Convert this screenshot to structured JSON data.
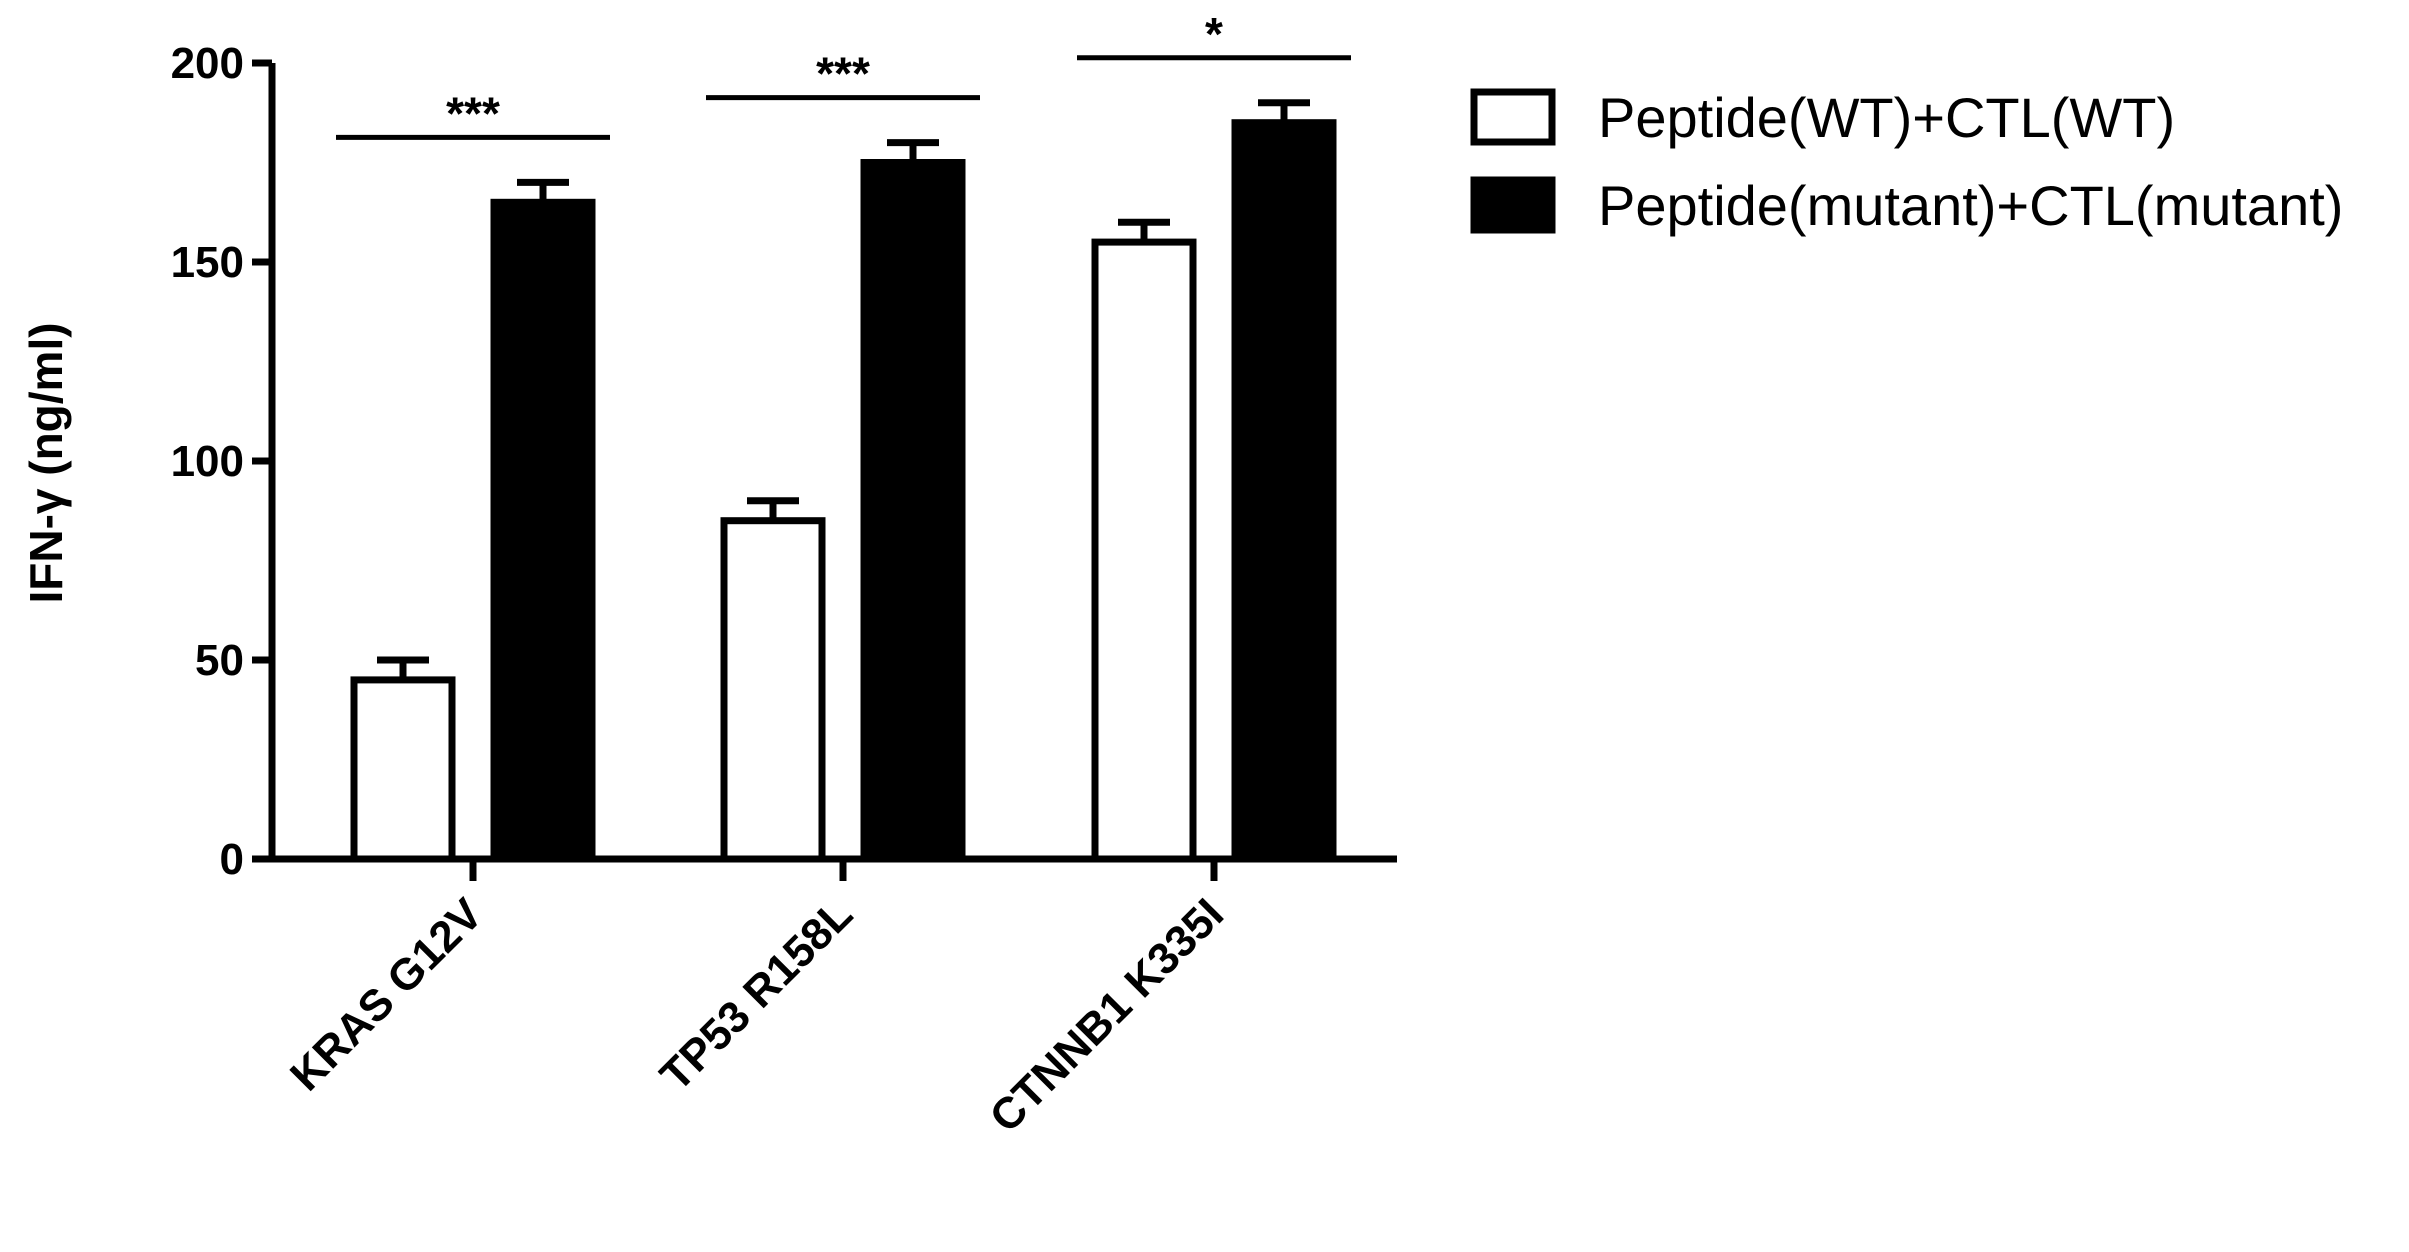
{
  "chart_data": {
    "type": "bar",
    "title": "",
    "ylabel": "IFN-γ (ng/ml)",
    "xlabel": "",
    "ylim": [
      0,
      200
    ],
    "yticks": [
      0,
      50,
      100,
      150,
      200
    ],
    "categories": [
      "KRAS G12V",
      "TP53 R158L",
      "CTNNB1 K335I"
    ],
    "series": [
      {
        "name": "Peptide(WT)+CTL(WT)",
        "fill": "#ffffff",
        "values": [
          45,
          85,
          155
        ],
        "errors": [
          5,
          5,
          5
        ]
      },
      {
        "name": "Peptide(mutant)+CTL(mutant)",
        "fill": "#000000",
        "values": [
          165,
          175,
          185
        ],
        "errors": [
          5,
          5,
          5
        ]
      }
    ],
    "significance": [
      "***",
      "***",
      "*"
    ],
    "grid": false,
    "legend_position": "top-right"
  }
}
